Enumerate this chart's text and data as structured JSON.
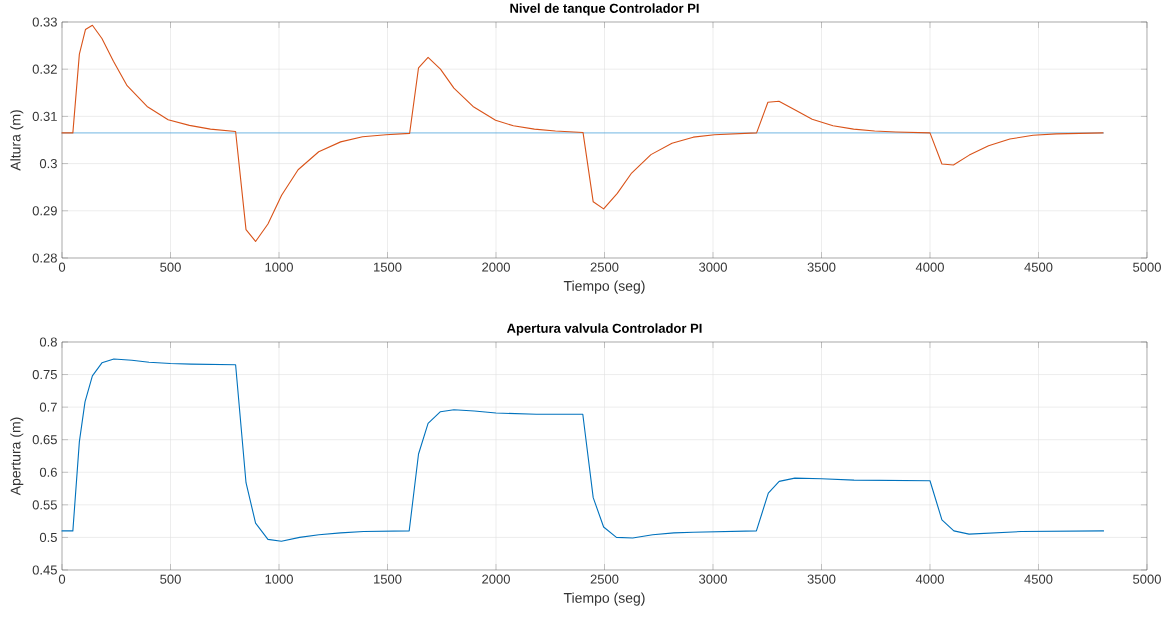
{
  "chart_data": [
    {
      "type": "line",
      "title": "Nivel de tanque Controlador PI",
      "xlabel": "Tiempo (seg)",
      "ylabel": "Altura (m)",
      "xlim": [
        0,
        5000
      ],
      "ylim": [
        0.28,
        0.33
      ],
      "xticks": [
        0,
        500,
        1000,
        1500,
        2000,
        2500,
        3000,
        3500,
        4000,
        4500,
        5000
      ],
      "yticks": [
        0.28,
        0.29,
        0.3,
        0.31,
        0.32,
        0.33
      ],
      "grid": true,
      "series": [
        {
          "color": "#4da3dc",
          "x": [
            0,
            4800
          ],
          "values": [
            0.3065,
            0.3065
          ]
        },
        {
          "color": "#d95319",
          "x": [
            0,
            50,
            80,
            108,
            140,
            184,
            237,
            300,
            392,
            489,
            587,
            684,
            800,
            848,
            892,
            949,
            1012,
            1088,
            1183,
            1284,
            1385,
            1493,
            1602,
            1643,
            1687,
            1744,
            1806,
            1894,
            1998,
            2080,
            2177,
            2274,
            2401,
            2448,
            2496,
            2559,
            2625,
            2714,
            2811,
            2909,
            3007,
            3201,
            3253,
            3304,
            3381,
            3457,
            3553,
            3648,
            3745,
            3843,
            4000,
            4055,
            4108,
            4181,
            4270,
            4368,
            4475,
            4582,
            4797
          ],
          "values": [
            0.3065,
            0.3065,
            0.3232,
            0.3284,
            0.3293,
            0.3265,
            0.3217,
            0.3165,
            0.3121,
            0.3093,
            0.3081,
            0.3073,
            0.3068,
            0.286,
            0.2835,
            0.2872,
            0.2933,
            0.2987,
            0.3025,
            0.3046,
            0.3057,
            0.3061,
            0.3064,
            0.3203,
            0.3225,
            0.32,
            0.316,
            0.3121,
            0.3092,
            0.308,
            0.3073,
            0.3069,
            0.3066,
            0.2919,
            0.2904,
            0.2937,
            0.298,
            0.3019,
            0.3043,
            0.3056,
            0.3061,
            0.3065,
            0.313,
            0.3132,
            0.3113,
            0.3094,
            0.308,
            0.3073,
            0.3069,
            0.3067,
            0.3065,
            0.2999,
            0.2997,
            0.3018,
            0.3038,
            0.3052,
            0.306,
            0.3063,
            0.3065
          ]
        }
      ]
    },
    {
      "type": "line",
      "title": "Apertura valvula Controlador PI",
      "xlabel": "Tiempo (seg)",
      "ylabel": "Apertura (m)",
      "xlim": [
        0,
        5000
      ],
      "ylim": [
        0.45,
        0.8
      ],
      "xticks": [
        0,
        500,
        1000,
        1500,
        2000,
        2500,
        3000,
        3500,
        4000,
        4500,
        5000
      ],
      "yticks": [
        0.45,
        0.5,
        0.55,
        0.6,
        0.65,
        0.7,
        0.75,
        0.8
      ],
      "grid": true,
      "series": [
        {
          "color": "#0072bd",
          "x": [
            0,
            50,
            80,
            106,
            140,
            184,
            239,
            322,
            401,
            500,
            595,
            800,
            848,
            892,
            949,
            1011,
            1095,
            1184,
            1284,
            1390,
            1600,
            1643,
            1687,
            1744,
            1806,
            1900,
            2000,
            2186,
            2400,
            2448,
            2496,
            2555,
            2630,
            2722,
            2820,
            2909,
            3200,
            3255,
            3305,
            3377,
            3500,
            3650,
            4000,
            4055,
            4110,
            4180,
            4420,
            4800
          ],
          "values": [
            0.51,
            0.51,
            0.647,
            0.708,
            0.748,
            0.768,
            0.774,
            0.772,
            0.769,
            0.767,
            0.766,
            0.765,
            0.584,
            0.522,
            0.497,
            0.494,
            0.5,
            0.504,
            0.507,
            0.509,
            0.51,
            0.628,
            0.675,
            0.693,
            0.696,
            0.694,
            0.691,
            0.689,
            0.689,
            0.561,
            0.516,
            0.5,
            0.499,
            0.504,
            0.507,
            0.508,
            0.51,
            0.568,
            0.586,
            0.591,
            0.59,
            0.588,
            0.587,
            0.527,
            0.51,
            0.505,
            0.509,
            0.51
          ]
        }
      ]
    }
  ]
}
